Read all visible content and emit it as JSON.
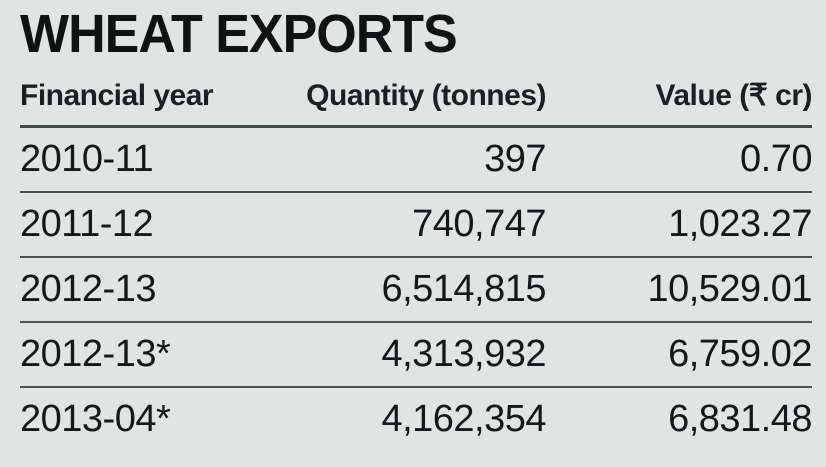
{
  "title": "WHEAT EXPORTS",
  "colors": {
    "background": "#dee6e3",
    "text": "#14181a",
    "separator_line": "#4a5553",
    "header_underline": "#3f4a49"
  },
  "currency_symbol": "₹",
  "footnote_marker": "*",
  "table": {
    "columns": [
      "Financial year",
      "Quantity (tonnes)",
      "Value (₹ cr)"
    ],
    "rows": [
      [
        "2010-11",
        "397",
        "0.70"
      ],
      [
        "2011-12",
        "740,747",
        "1,023.27"
      ],
      [
        "2012-13",
        "6,514,815",
        "10,529.01"
      ],
      [
        "2012-13*",
        "4,313,932",
        "6,759.02"
      ],
      [
        "2013-04*",
        "4,162,354",
        "6,831.48"
      ]
    ]
  },
  "chart_data": {
    "type": "table",
    "title": "WHEAT EXPORTS",
    "columns": [
      "Financial year",
      "Quantity (tonnes)",
      "Value (₹ cr)"
    ],
    "rows": [
      [
        "2010-11",
        "397",
        "0.70"
      ],
      [
        "2011-12",
        "740,747",
        "1,023.27"
      ],
      [
        "2012-13",
        "6,514,815",
        "10,529.01"
      ],
      [
        "2012-13*",
        "4,313,932",
        "6,759.02"
      ],
      [
        "2013-04*",
        "4,162,354",
        "6,831.48"
      ]
    ],
    "series": [
      {
        "name": "Quantity (tonnes)",
        "values": [
          397,
          740747,
          6514815,
          4313932,
          4162354
        ]
      },
      {
        "name": "Value (₹ cr)",
        "values": [
          0.7,
          1023.27,
          10529.01,
          6759.02,
          6831.48
        ]
      }
    ],
    "categories": [
      "2010-11",
      "2011-12",
      "2012-13",
      "2012-13*",
      "2013-04*"
    ]
  }
}
